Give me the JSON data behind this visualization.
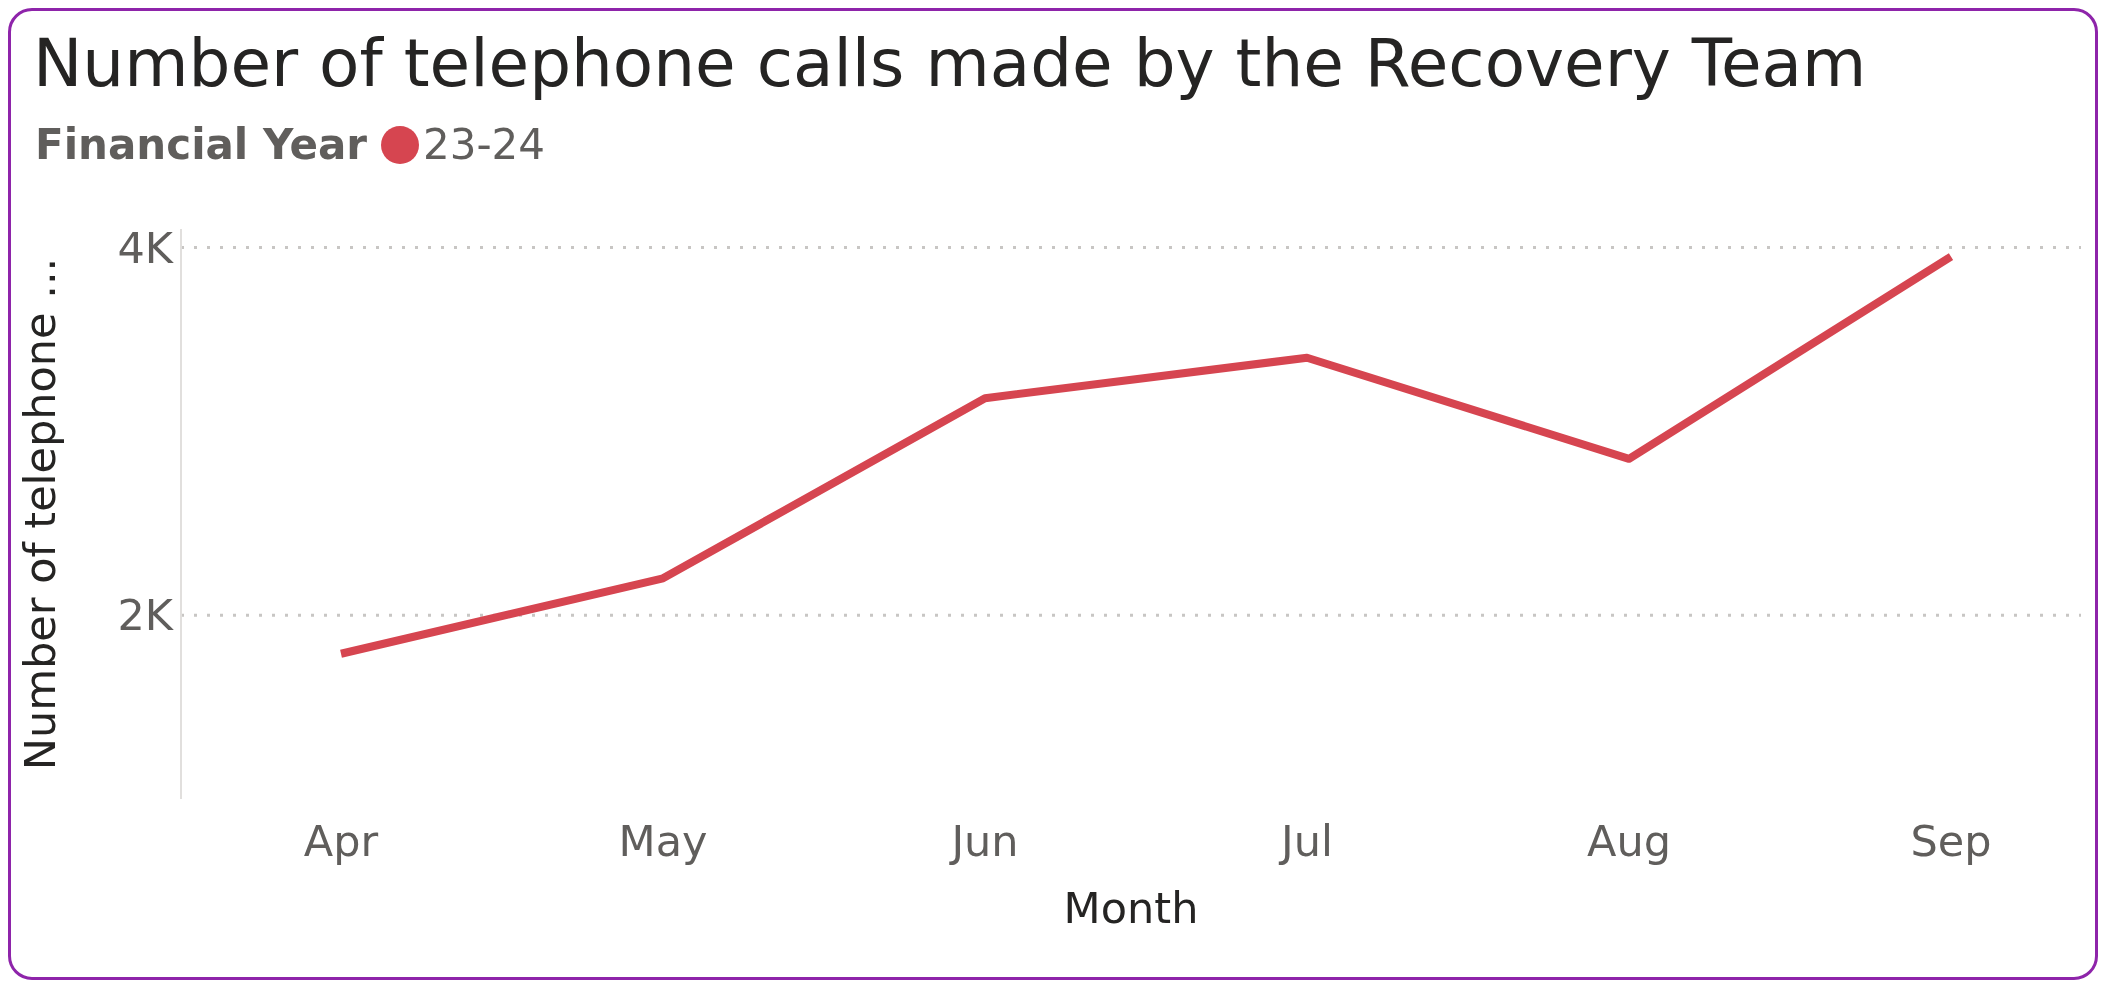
{
  "chart_data": {
    "type": "line",
    "title": "Number of telephone calls made by the Recovery Team",
    "xlabel": "Month",
    "ylabel": "Number of telephone ...",
    "legend_title": "Financial Year",
    "categories": [
      "Apr",
      "May",
      "Jun",
      "Jul",
      "Aug",
      "Sep"
    ],
    "series": [
      {
        "name": "23-24",
        "color": "#d64550",
        "values": [
          1790,
          2200,
          3180,
          3400,
          2850,
          3950
        ]
      }
    ],
    "ylim": [
      1000,
      4100
    ],
    "yticks": [
      {
        "value": 2000,
        "label": "2K"
      },
      {
        "value": 4000,
        "label": "4K"
      }
    ],
    "grid": "y",
    "legend": "top left",
    "line_style": "solid"
  }
}
